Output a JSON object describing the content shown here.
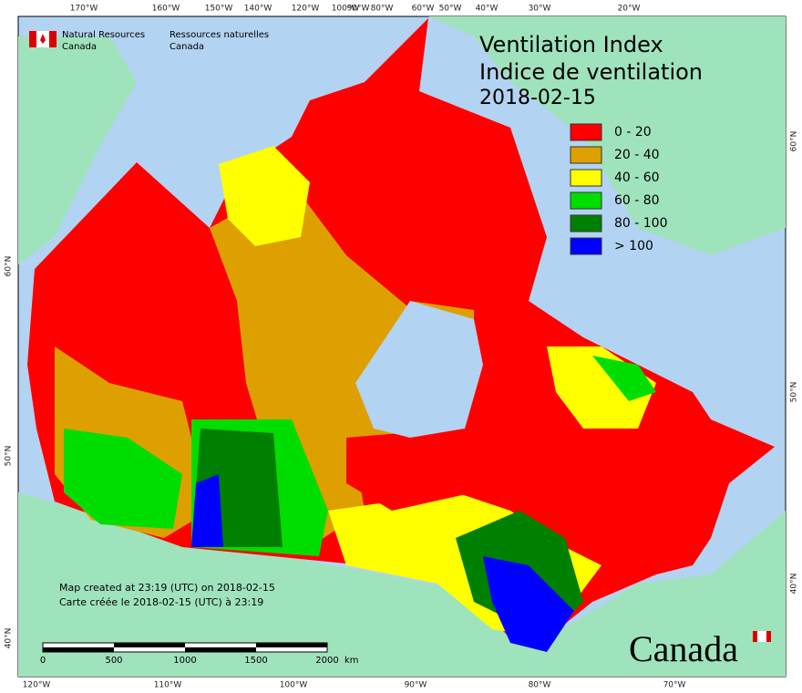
{
  "header": {
    "title": "Ventilation Index",
    "subtitle": "Indice de ventilation",
    "date": "2018-02-15"
  },
  "legend": [
    {
      "label": "0 - 20",
      "color": "#ff0000"
    },
    {
      "label": "20 - 40",
      "color": "#dda000"
    },
    {
      "label": "40 - 60",
      "color": "#ffff00"
    },
    {
      "label": "60 - 80",
      "color": "#00dd00"
    },
    {
      "label": "80 - 100",
      "color": "#008000"
    },
    {
      "label": "> 100",
      "color": "#0000ff"
    }
  ],
  "organization": {
    "english": [
      "Natural Resources",
      "Canada"
    ],
    "french": [
      "Ressources naturelles",
      "Canada"
    ]
  },
  "graticule": {
    "top": [
      "170°W",
      "160°W",
      "150°W",
      "140°W",
      "120°W",
      "100°W",
      "90°W",
      "80°W",
      "60°W",
      "50°W",
      "40°W",
      "30°W",
      "20°W"
    ],
    "bottom": [
      "120°W",
      "110°W",
      "100°W",
      "90°W",
      "80°W",
      "70°W"
    ],
    "left": [
      "60°N",
      "50°N",
      "40°N"
    ],
    "right": [
      "60°N",
      "50°N",
      "40°N"
    ]
  },
  "notes": [
    "Map created at 23:19 (UTC) on 2018-02-15",
    "Carte créée le 2018-02-15 (UTC) à 23:19"
  ],
  "scale_bar": {
    "labels": [
      "0",
      "500",
      "1000",
      "1500",
      "2000"
    ],
    "unit": "km"
  },
  "wordmark": "Canada"
}
